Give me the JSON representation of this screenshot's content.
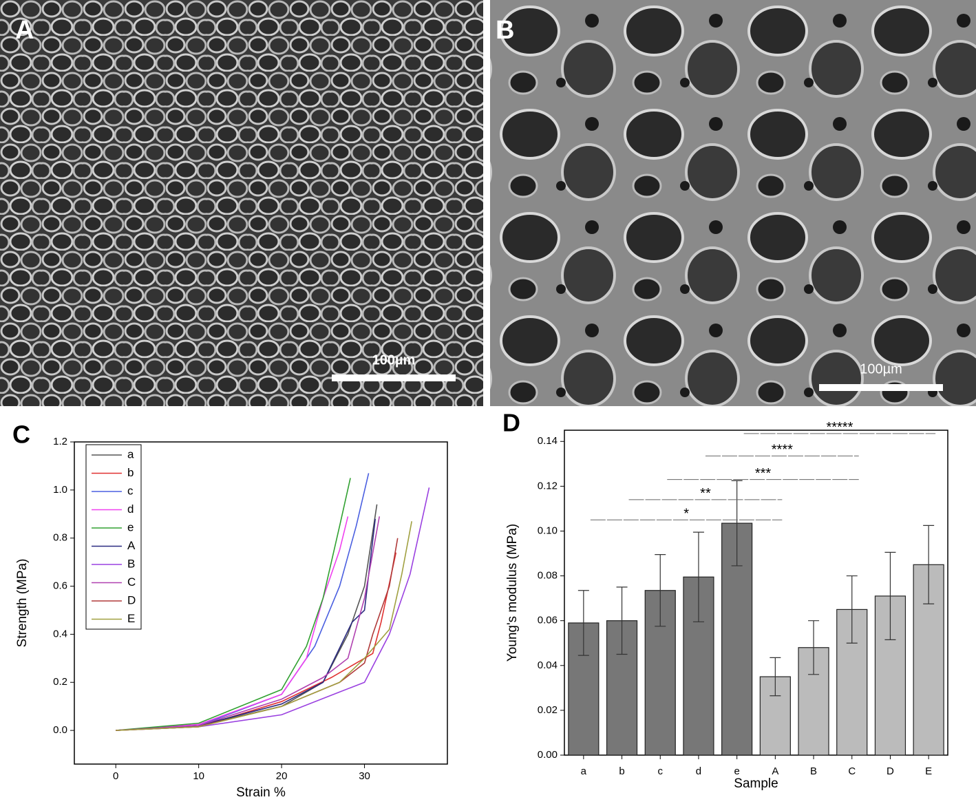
{
  "images": [
    {
      "panel_label": "A",
      "scale_bar": "100µm"
    },
    {
      "panel_label": "B",
      "scale_bar": "100µm"
    }
  ],
  "chart_data": [
    {
      "type": "line",
      "panel_label": "C",
      "x_label": "Strain %",
      "y_label": "Strength (MPa)",
      "xlim": [
        -5,
        40
      ],
      "ylim": [
        -0.14,
        1.2
      ],
      "xticks": [
        0,
        10,
        20,
        30
      ],
      "yticks": [
        {
          "value": 0,
          "label": "0.0"
        },
        0.2,
        0.4,
        0.6,
        0.8,
        {
          "value": 1,
          "label": "1.0"
        },
        1.2
      ],
      "legend": "top-left",
      "series": [
        {
          "name": "a",
          "color": "#555555",
          "x": [
            0,
            10,
            20,
            25,
            28,
            30,
            31.5
          ],
          "values": [
            0,
            0.02,
            0.1,
            0.2,
            0.4,
            0.6,
            0.94
          ]
        },
        {
          "name": "b",
          "color": "#e03030",
          "x": [
            0,
            10,
            20,
            26,
            30,
            31,
            32,
            33.8
          ],
          "values": [
            0,
            0.015,
            0.12,
            0.22,
            0.3,
            0.32,
            0.45,
            0.74
          ]
        },
        {
          "name": "c",
          "color": "#4a5fe0",
          "x": [
            0,
            10,
            20,
            24,
            27,
            29,
            30.5
          ],
          "values": [
            0,
            0.02,
            0.15,
            0.35,
            0.6,
            0.85,
            1.07
          ]
        },
        {
          "name": "d",
          "color": "#f040f0",
          "x": [
            0,
            10,
            20,
            23,
            25,
            27,
            28
          ],
          "values": [
            0,
            0.025,
            0.15,
            0.3,
            0.55,
            0.75,
            0.89
          ]
        },
        {
          "name": "e",
          "color": "#30a030",
          "x": [
            0,
            10,
            20,
            23,
            25,
            27,
            28.3
          ],
          "values": [
            0,
            0.03,
            0.17,
            0.35,
            0.55,
            0.85,
            1.05
          ]
        },
        {
          "name": "A",
          "color": "#2a2a80",
          "x": [
            0,
            10,
            20,
            25,
            28.5,
            30,
            31.3
          ],
          "values": [
            0,
            0.02,
            0.11,
            0.2,
            0.45,
            0.5,
            0.88
          ]
        },
        {
          "name": "B",
          "color": "#9a40e0",
          "x": [
            0,
            10,
            20,
            27,
            30,
            33,
            35.5,
            37.8
          ],
          "values": [
            0,
            0.015,
            0.065,
            0.16,
            0.2,
            0.4,
            0.65,
            1.01
          ]
        },
        {
          "name": "C",
          "color": "#b040b0",
          "x": [
            0,
            10,
            20,
            25,
            28,
            30,
            31.8
          ],
          "values": [
            0,
            0.02,
            0.13,
            0.22,
            0.3,
            0.55,
            0.89
          ]
        },
        {
          "name": "D",
          "color": "#b03a3a",
          "x": [
            0,
            10,
            20,
            27,
            30,
            31,
            33,
            34
          ],
          "values": [
            0,
            0.015,
            0.1,
            0.2,
            0.28,
            0.4,
            0.6,
            0.8
          ]
        },
        {
          "name": "E",
          "color": "#a0a040",
          "x": [
            0,
            10,
            20,
            27,
            30,
            33,
            34.5,
            35.7
          ],
          "values": [
            0,
            0.015,
            0.1,
            0.2,
            0.3,
            0.42,
            0.65,
            0.87
          ]
        }
      ]
    },
    {
      "type": "bar",
      "panel_label": "D",
      "x_label": "Sample",
      "y_label": "Young's modulus (MPa)",
      "categories": [
        "a",
        "b",
        "c",
        "d",
        "e",
        "A",
        "B",
        "C",
        "D",
        "E"
      ],
      "values": [
        0.059,
        0.06,
        0.0735,
        0.0795,
        0.1035,
        0.035,
        0.048,
        0.065,
        0.071,
        0.085
      ],
      "errors": [
        0.0145,
        0.015,
        0.016,
        0.02,
        0.019,
        0.0085,
        0.012,
        0.015,
        0.0195,
        0.0175
      ],
      "colors": [
        "#777777",
        "#777777",
        "#777777",
        "#777777",
        "#777777",
        "#bbbbbb",
        "#bbbbbb",
        "#bbbbbb",
        "#bbbbbb",
        "#bbbbbb"
      ],
      "ylim": [
        0,
        0.145
      ],
      "yticks": [
        {
          "value": 0,
          "label": "0.00"
        },
        0.02,
        0.04,
        0.06,
        0.08,
        {
          "value": 0.1,
          "label": "0.10"
        },
        0.12,
        0.14
      ],
      "annotations": [
        {
          "text": "*",
          "y": 0.105,
          "from": "a",
          "to": "A"
        },
        {
          "text": "**",
          "y": 0.114,
          "from": "b",
          "to": "A"
        },
        {
          "text": "***",
          "y": 0.123,
          "from": "c",
          "to": "C"
        },
        {
          "text": "****",
          "y": 0.1335,
          "from": "d",
          "to": "C"
        },
        {
          "text": "*****",
          "y": 0.1435,
          "from": "e",
          "to": "E"
        }
      ]
    }
  ]
}
